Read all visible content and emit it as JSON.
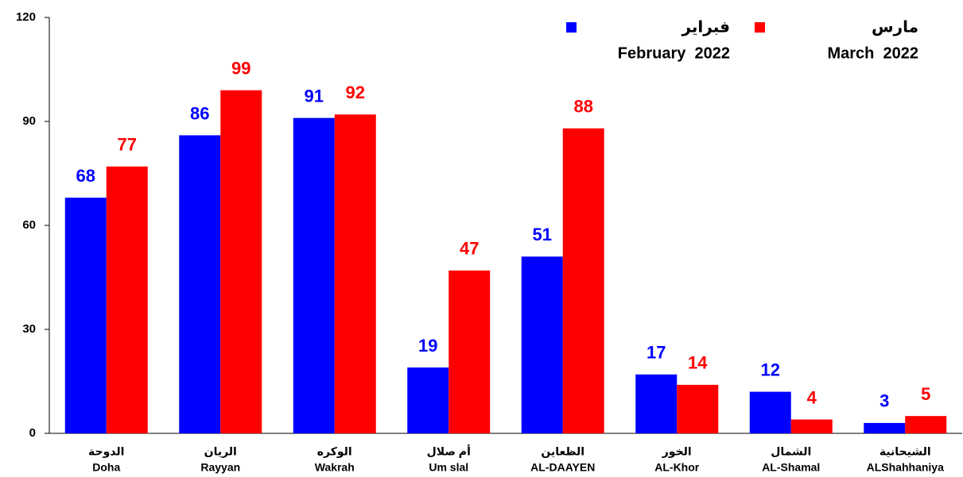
{
  "chart_data": {
    "type": "bar",
    "categories": [
      "Doha",
      "Rayyan",
      "Wakrah",
      "Um slal",
      "AL-DAAYEN",
      "AL-Khor",
      "AL-Shamal",
      "ALShahhaniya"
    ],
    "categories_arabic": [
      "الدوحة",
      "الريان",
      "الوكره",
      "أم صلال",
      "الظعاين",
      "الخور",
      "الشمال",
      "الشيحانية"
    ],
    "series": [
      {
        "name": "February  2022",
        "name_arabic": "فبراير",
        "color": "#0000ff",
        "values": [
          68,
          86,
          91,
          19,
          51,
          17,
          12,
          3
        ]
      },
      {
        "name": "March  2022",
        "name_arabic": "مارس",
        "color": "#ff0000",
        "values": [
          77,
          99,
          92,
          47,
          88,
          14,
          4,
          5
        ]
      }
    ],
    "ylim": [
      0,
      120
    ],
    "yticks": [
      0,
      30,
      60,
      90,
      120
    ],
    "grid": false,
    "legend": "top-right"
  }
}
